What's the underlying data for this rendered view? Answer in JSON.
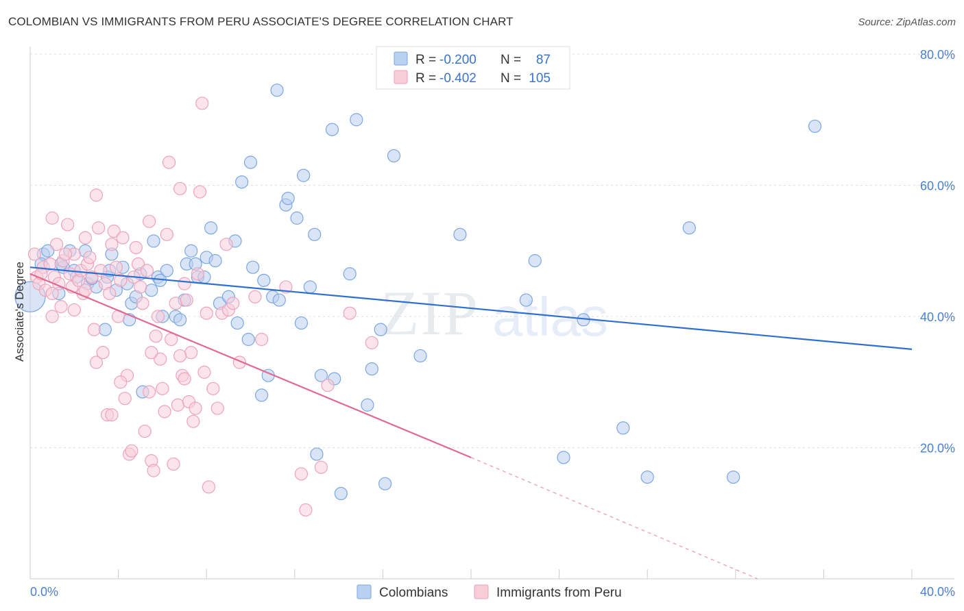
{
  "chart_data": {
    "type": "scatter",
    "title": "COLOMBIAN VS IMMIGRANTS FROM PERU ASSOCIATE'S DEGREE CORRELATION CHART",
    "source": "Source: ZipAtlas.com",
    "xlabel": "",
    "ylabel": "Associate's Degree",
    "xlim": [
      0,
      40
    ],
    "ylim": [
      0,
      80
    ],
    "x_tick_labels": [
      {
        "value": 0,
        "label": "0.0%"
      },
      {
        "value": 40,
        "label": "40.0%"
      }
    ],
    "y_tick_labels": [
      {
        "value": 20,
        "label": "20.0%"
      },
      {
        "value": 40,
        "label": "40.0%"
      },
      {
        "value": 60,
        "label": "60.0%"
      },
      {
        "value": 80,
        "label": "80.0%"
      }
    ],
    "grid": true,
    "watermark": "ZIPatlas",
    "legend": {
      "position": "top-center",
      "entries": [
        {
          "series": "Colombians",
          "r_label": "R =",
          "r_value": "-0.200",
          "n_label": "N =",
          "n_value": "87"
        },
        {
          "series": "Immigrants from Peru",
          "r_label": "R =",
          "r_value": "-0.402",
          "n_label": "N =",
          "n_value": "105"
        }
      ]
    },
    "series": [
      {
        "name": "Colombians",
        "color": "#7aa6e0",
        "fill": "#b9d0f0",
        "line_color": "#2f6fd0",
        "trend": {
          "x0": 0,
          "y0": 47.5,
          "x1": 40,
          "y1": 35
        },
        "points": [
          [
            0.0,
            43
          ],
          [
            0.6,
            49.5
          ],
          [
            0.8,
            50
          ],
          [
            0.5,
            48
          ],
          [
            1.5,
            47.5
          ],
          [
            1.8,
            50
          ],
          [
            1.4,
            48
          ],
          [
            2.0,
            47
          ],
          [
            2.1,
            46
          ],
          [
            2.6,
            45
          ],
          [
            2.5,
            50
          ],
          [
            3.0,
            44.5
          ],
          [
            3.5,
            46
          ],
          [
            3.6,
            47
          ],
          [
            3.7,
            49.5
          ],
          [
            4.2,
            47.5
          ],
          [
            4.4,
            45
          ],
          [
            4.5,
            39.5
          ],
          [
            4.6,
            42
          ],
          [
            4.8,
            43
          ],
          [
            5.0,
            46.5
          ],
          [
            5.1,
            28.5
          ],
          [
            5.5,
            44
          ],
          [
            5.6,
            51.5
          ],
          [
            5.8,
            46
          ],
          [
            6.0,
            40
          ],
          [
            6.2,
            47
          ],
          [
            6.6,
            40
          ],
          [
            6.8,
            39.5
          ],
          [
            7.0,
            42.5
          ],
          [
            7.1,
            48
          ],
          [
            7.3,
            50
          ],
          [
            7.5,
            48
          ],
          [
            7.6,
            46
          ],
          [
            7.9,
            46
          ],
          [
            8.0,
            49
          ],
          [
            8.4,
            48.5
          ],
          [
            8.2,
            53.5
          ],
          [
            8.6,
            42
          ],
          [
            9.0,
            43
          ],
          [
            9.3,
            51.5
          ],
          [
            9.4,
            39
          ],
          [
            9.6,
            60.5
          ],
          [
            9.9,
            36.5
          ],
          [
            10.0,
            63.5
          ],
          [
            10.1,
            47.5
          ],
          [
            10.5,
            28
          ],
          [
            10.6,
            45.5
          ],
          [
            10.8,
            31
          ],
          [
            11.0,
            43
          ],
          [
            11.3,
            42.5
          ],
          [
            11.2,
            74.5
          ],
          [
            11.6,
            57
          ],
          [
            11.7,
            58
          ],
          [
            12.1,
            55
          ],
          [
            12.3,
            39
          ],
          [
            12.4,
            61.5
          ],
          [
            12.7,
            44.5
          ],
          [
            12.9,
            52.5
          ],
          [
            13.0,
            19
          ],
          [
            13.2,
            31
          ],
          [
            13.7,
            68.5
          ],
          [
            13.8,
            30.5
          ],
          [
            14.5,
            46.5
          ],
          [
            14.8,
            70
          ],
          [
            15.3,
            26.5
          ],
          [
            15.5,
            32
          ],
          [
            15.9,
            38
          ],
          [
            16.1,
            14.5
          ],
          [
            16.5,
            64.5
          ],
          [
            17.7,
            34
          ],
          [
            19.5,
            52.5
          ],
          [
            22.5,
            42.5
          ],
          [
            22.9,
            48.5
          ],
          [
            24.2,
            18.5
          ],
          [
            25.1,
            39.5
          ],
          [
            26.9,
            23
          ],
          [
            28.0,
            15.5
          ],
          [
            29.9,
            53.5
          ],
          [
            31.9,
            15.5
          ],
          [
            35.6,
            69
          ],
          [
            14.1,
            13
          ],
          [
            3.4,
            38
          ],
          [
            1.3,
            43.5
          ],
          [
            2.8,
            45.8
          ],
          [
            5.9,
            45.5
          ],
          [
            3.9,
            44
          ]
        ]
      },
      {
        "name": "Immigrants from Peru",
        "color": "#eca3bb",
        "fill": "#f7cdda",
        "line_color": "#e0698f",
        "trend": {
          "x0": 0,
          "y0": 46.5,
          "x1": 20,
          "y1": 18.5
        },
        "trend_dashed": {
          "x0": 20,
          "y0": 18.5,
          "x1": 33,
          "y1": 0
        },
        "points": [
          [
            0.2,
            49.5
          ],
          [
            0.3,
            46
          ],
          [
            0.4,
            45
          ],
          [
            0.6,
            47.5
          ],
          [
            0.7,
            44
          ],
          [
            0.9,
            48
          ],
          [
            1.0,
            43.5
          ],
          [
            1.1,
            46
          ],
          [
            1.0,
            55
          ],
          [
            1.2,
            51
          ],
          [
            1.3,
            45
          ],
          [
            1.4,
            41.5
          ],
          [
            1.5,
            48.5
          ],
          [
            1.7,
            54
          ],
          [
            1.8,
            46.5
          ],
          [
            1.9,
            44.5
          ],
          [
            2.0,
            49.5
          ],
          [
            2.2,
            45.5
          ],
          [
            2.3,
            47
          ],
          [
            2.4,
            43.5
          ],
          [
            2.5,
            52
          ],
          [
            2.6,
            48
          ],
          [
            2.7,
            49
          ],
          [
            2.8,
            46
          ],
          [
            2.9,
            38
          ],
          [
            3.0,
            58.5
          ],
          [
            3.0,
            33
          ],
          [
            3.1,
            53.5
          ],
          [
            3.2,
            47
          ],
          [
            3.3,
            34.5
          ],
          [
            3.4,
            45
          ],
          [
            3.5,
            25
          ],
          [
            3.6,
            43.5
          ],
          [
            3.7,
            25
          ],
          [
            3.8,
            53
          ],
          [
            3.9,
            47.5
          ],
          [
            4.0,
            40
          ],
          [
            4.1,
            45.5
          ],
          [
            4.2,
            52
          ],
          [
            4.3,
            27.5
          ],
          [
            4.4,
            31
          ],
          [
            4.5,
            19
          ],
          [
            4.6,
            19.5
          ],
          [
            4.7,
            46
          ],
          [
            4.8,
            50.5
          ],
          [
            4.9,
            48
          ],
          [
            5.0,
            44.5
          ],
          [
            5.1,
            42
          ],
          [
            5.2,
            22.5
          ],
          [
            5.3,
            47
          ],
          [
            5.4,
            54.5
          ],
          [
            5.4,
            28.5
          ],
          [
            5.5,
            18
          ],
          [
            5.6,
            16.5
          ],
          [
            5.7,
            37
          ],
          [
            5.8,
            40
          ],
          [
            5.9,
            33.5
          ],
          [
            6.0,
            29
          ],
          [
            6.1,
            25.5
          ],
          [
            6.2,
            52.5
          ],
          [
            6.3,
            63.5
          ],
          [
            6.4,
            36.5
          ],
          [
            6.5,
            17.5
          ],
          [
            6.6,
            42
          ],
          [
            6.7,
            26.5
          ],
          [
            6.8,
            59.5
          ],
          [
            6.9,
            31
          ],
          [
            7.0,
            30.5
          ],
          [
            7.1,
            42.5
          ],
          [
            7.2,
            27
          ],
          [
            7.3,
            34.5
          ],
          [
            7.4,
            24
          ],
          [
            7.5,
            26
          ],
          [
            7.6,
            46.5
          ],
          [
            7.7,
            59
          ],
          [
            7.8,
            72.5
          ],
          [
            7.9,
            31.5
          ],
          [
            8.0,
            40.5
          ],
          [
            8.1,
            14
          ],
          [
            8.3,
            29
          ],
          [
            8.5,
            26
          ],
          [
            8.7,
            40.5
          ],
          [
            8.9,
            51
          ],
          [
            9.0,
            41
          ],
          [
            9.2,
            42
          ],
          [
            10.2,
            43
          ],
          [
            10.5,
            36.5
          ],
          [
            12.3,
            16
          ],
          [
            12.5,
            10.5
          ],
          [
            13.2,
            17
          ],
          [
            14.5,
            40.5
          ],
          [
            15.5,
            36
          ],
          [
            13.5,
            29.5
          ],
          [
            2.5,
            44
          ],
          [
            1.6,
            49.5
          ],
          [
            0.5,
            46.5
          ],
          [
            3.7,
            51
          ],
          [
            5.5,
            34.5
          ],
          [
            6.8,
            34
          ],
          [
            7.0,
            45
          ],
          [
            9.5,
            33
          ],
          [
            11.6,
            44.5
          ],
          [
            4.1,
            30
          ],
          [
            2.0,
            41
          ],
          [
            1.0,
            40
          ]
        ]
      }
    ]
  }
}
